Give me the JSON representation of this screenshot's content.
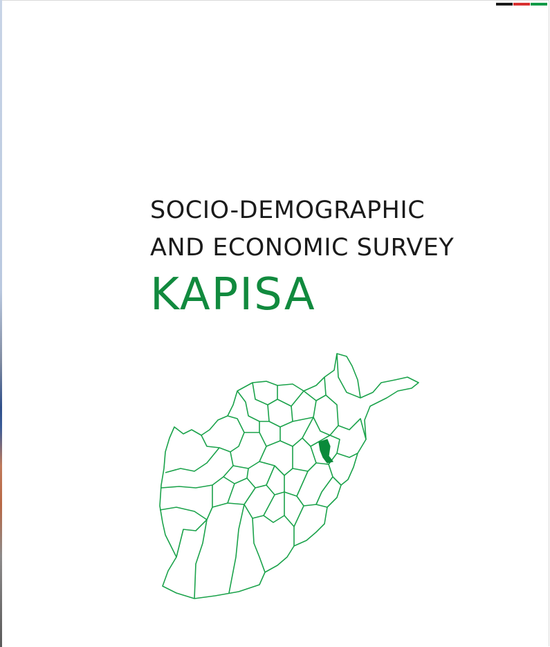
{
  "cover": {
    "title_line1": "SOCIO-DEMOGRAPHIC",
    "title_line2": "AND ECONOMIC SURVEY",
    "province": "KAPISA"
  },
  "flag_colors": [
    "#1a1a1a",
    "#d8302f",
    "#0f9a47"
  ],
  "colors": {
    "title": "#1a1a1a",
    "accent_green": "#118a3e",
    "map_outline": "#1aa24a",
    "highlight": "#0a8a3a"
  },
  "map": {
    "icon": "afghanistan-province-map-icon",
    "highlighted_province": "kapisa"
  }
}
